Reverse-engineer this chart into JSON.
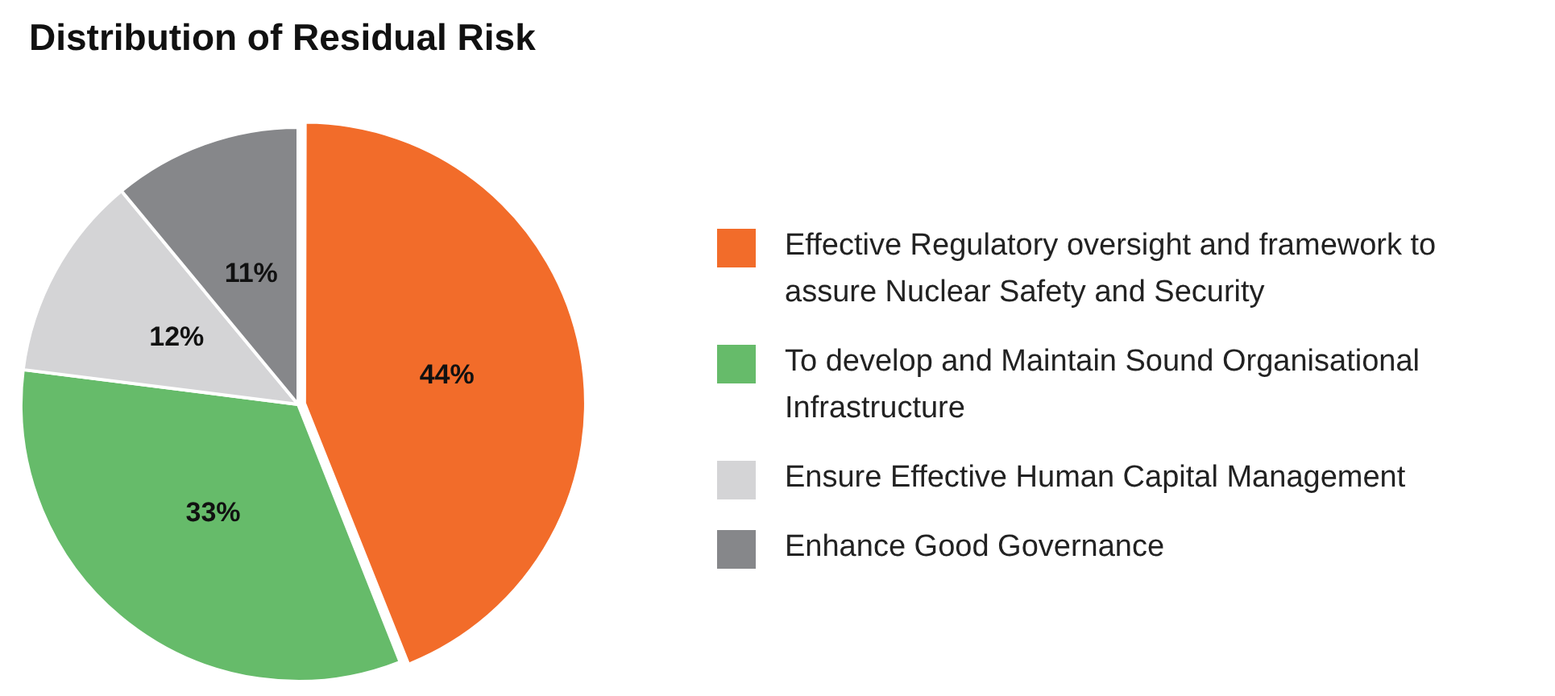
{
  "chart_data": {
    "type": "pie",
    "title": "Distribution of Residual Risk",
    "categories": [
      "Effective Regulatory oversight and framework to assure Nuclear Safety and Security",
      "To develop and Maintain Sound Organisational Infrastructure",
      "Ensure Effective Human Capital Management",
      "Enhance Good Governance"
    ],
    "values": [
      44,
      33,
      12,
      11
    ],
    "colors": [
      "#f26c2a",
      "#66bb6a",
      "#d4d4d6",
      "#86878a"
    ],
    "value_labels": [
      "44%",
      "33%",
      "12%",
      "11%"
    ],
    "legend": "right"
  }
}
